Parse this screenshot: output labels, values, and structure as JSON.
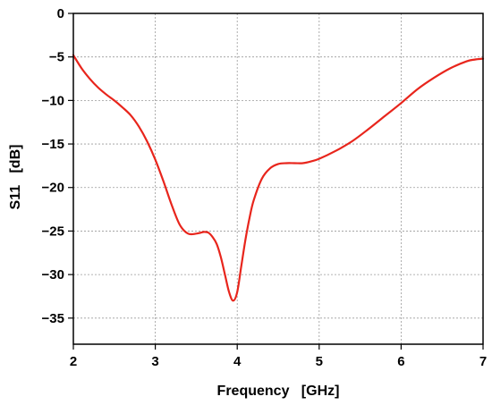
{
  "chart_data": {
    "type": "line",
    "title": "",
    "xlabel": "Frequency   [GHz]",
    "ylabel": "S11   [dB]",
    "xlim": [
      2,
      7
    ],
    "ylim": [
      -38,
      0
    ],
    "xticks": [
      2,
      3,
      4,
      5,
      6,
      7
    ],
    "yticks": [
      0,
      -5,
      -10,
      -15,
      -20,
      -25,
      -30,
      -35
    ],
    "xtick_labels": [
      "2",
      "3",
      "4",
      "5",
      "6",
      "7"
    ],
    "ytick_labels": [
      "0",
      "−5",
      "−10",
      "−15",
      "−20",
      "−25",
      "−30",
      "−35"
    ],
    "grid": true,
    "legend": false,
    "series": [
      {
        "color": "#e8251c",
        "x": [
          2.0,
          2.1,
          2.2,
          2.3,
          2.4,
          2.5,
          2.6,
          2.7,
          2.8,
          2.9,
          3.0,
          3.1,
          3.2,
          3.3,
          3.4,
          3.5,
          3.55,
          3.6,
          3.65,
          3.7,
          3.75,
          3.8,
          3.85,
          3.9,
          3.95,
          4.0,
          4.05,
          4.1,
          4.15,
          4.2,
          4.3,
          4.4,
          4.5,
          4.6,
          4.7,
          4.8,
          4.9,
          5.0,
          5.2,
          5.4,
          5.6,
          5.8,
          6.0,
          6.2,
          6.4,
          6.6,
          6.8,
          6.9,
          7.0
        ],
        "y": [
          -4.8,
          -6.3,
          -7.5,
          -8.5,
          -9.3,
          -10.0,
          -10.8,
          -11.7,
          -13.0,
          -14.7,
          -16.8,
          -19.3,
          -22.0,
          -24.3,
          -25.3,
          -25.3,
          -25.2,
          -25.1,
          -25.2,
          -25.7,
          -26.5,
          -28.0,
          -30.0,
          -32.0,
          -33.0,
          -32.0,
          -29.0,
          -26.0,
          -23.5,
          -21.5,
          -19.0,
          -17.8,
          -17.3,
          -17.2,
          -17.2,
          -17.2,
          -17.0,
          -16.7,
          -15.8,
          -14.7,
          -13.3,
          -11.8,
          -10.3,
          -8.7,
          -7.4,
          -6.3,
          -5.5,
          -5.3,
          -5.2
        ]
      }
    ]
  }
}
